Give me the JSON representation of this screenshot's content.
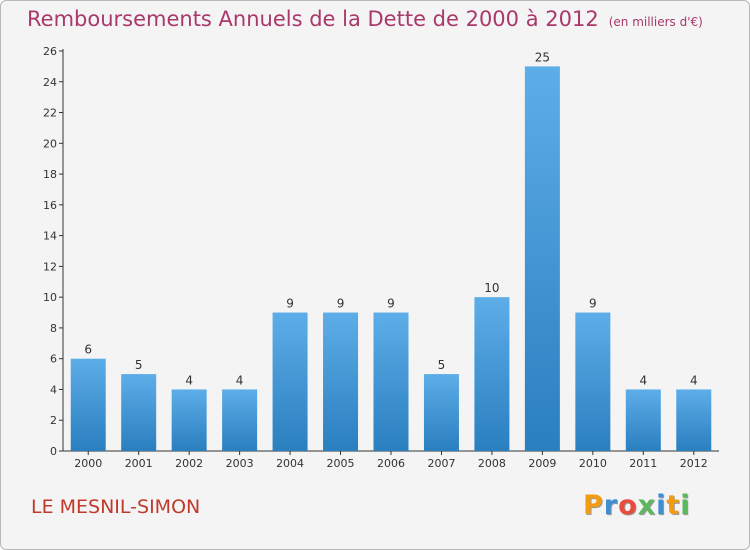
{
  "header": {
    "title": "Remboursements Annuels de la Dette de 2000 à 2012",
    "unit": "(en milliers d'€)"
  },
  "footer": {
    "commune": "LE MESNIL-SIMON",
    "logo_letters": [
      "P",
      "r",
      "o",
      "x",
      "i",
      "t",
      "i"
    ],
    "logo_colors": [
      "#f39c12",
      "#3e8ed0",
      "#e74c3c",
      "#5cb85c",
      "#3e8ed0",
      "#f39c12",
      "#5cb85c"
    ]
  },
  "chart_data": {
    "type": "bar",
    "title": "Remboursements Annuels de la Dette de 2000 à 2012",
    "categories": [
      "2000",
      "2001",
      "2002",
      "2003",
      "2004",
      "2005",
      "2006",
      "2007",
      "2008",
      "2009",
      "2010",
      "2011",
      "2012"
    ],
    "values": [
      6,
      5,
      4,
      4,
      9,
      9,
      9,
      5,
      10,
      25,
      9,
      4,
      4
    ],
    "ylim": [
      0,
      26
    ],
    "yticks": [
      0,
      2,
      4,
      6,
      8,
      10,
      12,
      14,
      16,
      18,
      20,
      22,
      24,
      26
    ],
    "grid": false,
    "bar_color_top": "#5dade8",
    "bar_color_bottom": "#2a7fbf"
  }
}
